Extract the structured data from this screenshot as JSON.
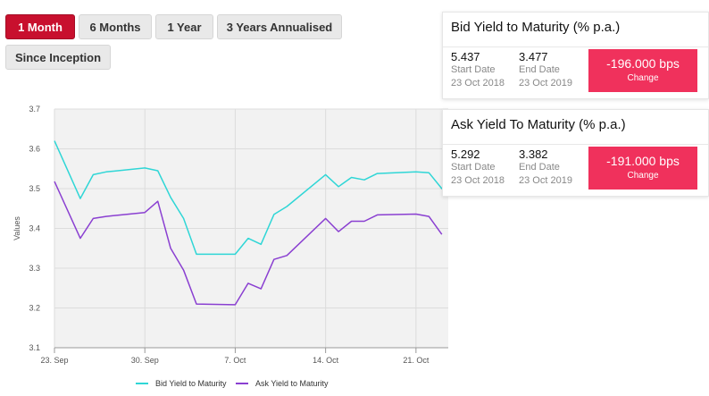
{
  "periods": {
    "one_month": "1 Month",
    "six_months": "6 Months",
    "one_year": "1 Year",
    "three_years": "3 Years Annualised",
    "since_inception": "Since Inception"
  },
  "bid_card": {
    "title": "Bid Yield to Maturity (% p.a.)",
    "start_value": "5.437",
    "start_label": "Start Date",
    "start_date": "23 Oct 2018",
    "end_value": "3.477",
    "end_label": "End Date",
    "end_date": "23 Oct 2019",
    "change_value": "-196.000 bps",
    "change_label": "Change"
  },
  "ask_card": {
    "title": "Ask Yield To Maturity (% p.a.)",
    "start_value": "5.292",
    "start_label": "Start Date",
    "start_date": "23 Oct 2018",
    "end_value": "3.382",
    "end_label": "End Date",
    "end_date": "23 Oct 2019",
    "change_value": "-191.000 bps",
    "change_label": "Change"
  },
  "colors": {
    "active_button": "#c8102e",
    "change_box": "#f0315c",
    "bid_line": "#2fd6d6",
    "ask_line": "#8a3fd1"
  },
  "chart_data": {
    "type": "line",
    "ylabel": "Values",
    "ylim": [
      3.1,
      3.7
    ],
    "yticks": [
      "3.1",
      "3.2",
      "3.3",
      "3.4",
      "3.5",
      "3.6",
      "3.7"
    ],
    "xlim": [
      0,
      30.5
    ],
    "xticks": [
      {
        "pos": 0,
        "label": "23. Sep"
      },
      {
        "pos": 7,
        "label": "30. Sep"
      },
      {
        "pos": 14,
        "label": "7. Oct"
      },
      {
        "pos": 21,
        "label": "14. Oct"
      },
      {
        "pos": 28,
        "label": "21. Oct"
      }
    ],
    "grid": true,
    "legend_position": "bottom",
    "series": [
      {
        "name": "Bid Yield to Maturity",
        "x": [
          0,
          2,
          3,
          4,
          7,
          8,
          9,
          10,
          11,
          14,
          15,
          16,
          17,
          18,
          21,
          22,
          23,
          24,
          25,
          28,
          29,
          30,
          30.5
        ],
        "values": [
          3.62,
          3.475,
          3.535,
          3.542,
          3.552,
          3.545,
          3.478,
          3.425,
          3.335,
          3.335,
          3.375,
          3.36,
          3.435,
          3.455,
          3.535,
          3.505,
          3.528,
          3.522,
          3.538,
          3.542,
          3.54,
          3.5,
          3.492
        ]
      },
      {
        "name": "Ask Yield to Maturity",
        "x": [
          0,
          2,
          3,
          4,
          7,
          8,
          9,
          10,
          11,
          14,
          15,
          16,
          17,
          18,
          21,
          22,
          23,
          24,
          25,
          28,
          29,
          30
        ],
        "values": [
          3.518,
          3.375,
          3.425,
          3.43,
          3.44,
          3.468,
          3.35,
          3.295,
          3.21,
          3.208,
          3.262,
          3.248,
          3.322,
          3.332,
          3.425,
          3.392,
          3.418,
          3.418,
          3.434,
          3.436,
          3.43,
          3.385
        ]
      }
    ]
  }
}
